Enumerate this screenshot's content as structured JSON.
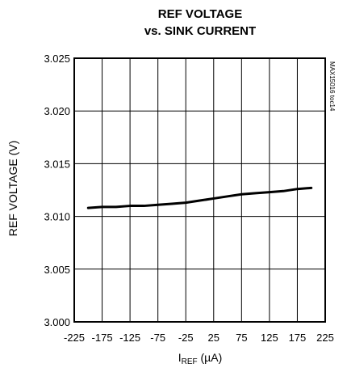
{
  "chart_data": {
    "type": "line",
    "title_line1": "REF VOLTAGE",
    "title_line2": "vs. SINK CURRENT",
    "xlabel_main": "I",
    "xlabel_sub": "REF",
    "xlabel_unit": " (µA)",
    "ylabel": "REF VOLTAGE (V)",
    "code": "MAX15016 toc14",
    "xlim": [
      -225,
      225
    ],
    "ylim": [
      3.0,
      3.025
    ],
    "xticks": [
      -225,
      -175,
      -125,
      -75,
      -25,
      25,
      75,
      125,
      175,
      225
    ],
    "yticks": [
      3.0,
      3.005,
      3.01,
      3.015,
      3.02,
      3.025
    ],
    "ytick_labels": [
      "3.000",
      "3.005",
      "3.010",
      "3.015",
      "3.020",
      "3.025"
    ],
    "grid": true,
    "series": [
      {
        "x": [
          -200,
          -175,
          -150,
          -125,
          -100,
          -75,
          -50,
          -25,
          0,
          25,
          50,
          75,
          100,
          125,
          150,
          175,
          200
        ],
        "y": [
          3.0108,
          3.0109,
          3.0109,
          3.011,
          3.011,
          3.0111,
          3.0112,
          3.0113,
          3.0115,
          3.0117,
          3.0119,
          3.0121,
          3.0122,
          3.0123,
          3.0124,
          3.0126,
          3.0127
        ]
      }
    ]
  }
}
